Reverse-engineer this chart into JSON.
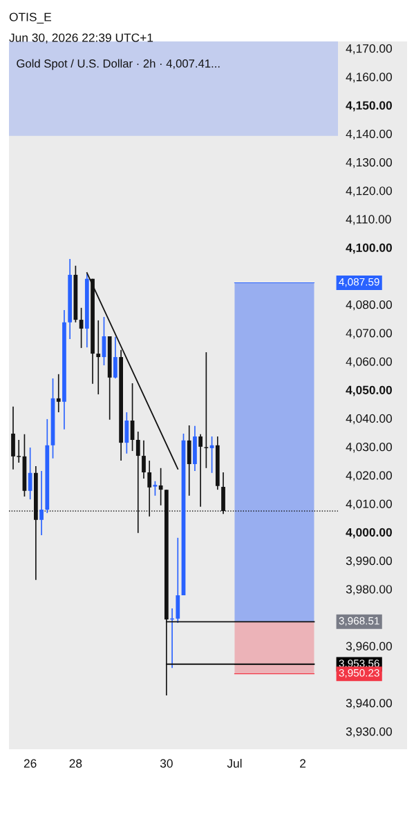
{
  "chart_data": {
    "type": "candlestick",
    "title": "Gold Spot / U.S. Dollar · 2h · 4,007.41...",
    "annotations": [
      "OTIS_E",
      "Jun 30, 2026 22:39 UTC+1"
    ],
    "categories": [
      null,
      null,
      null,
      "26",
      null,
      null,
      null,
      null,
      null,
      null,
      null,
      "28",
      null,
      null,
      null,
      null,
      null,
      null,
      null,
      null,
      null,
      null,
      null,
      null,
      null,
      null,
      null,
      "30",
      null,
      null,
      null,
      null,
      null,
      null,
      null,
      null,
      null,
      null,
      null,
      "Jul",
      null,
      null,
      null,
      null,
      null,
      null,
      null,
      null,
      null,
      null,
      null,
      "2",
      null,
      null,
      null,
      null,
      null,
      null
    ],
    "ohlc": [
      [
        4034.6,
        4044.1,
        4022.0,
        4026.6
      ],
      [
        4026.6,
        4032.4,
        4024.4,
        4026.4
      ],
      [
        4026.6,
        4034.4,
        4012.5,
        4014.5
      ],
      [
        4014.5,
        4029.7,
        4011.5,
        4020.8
      ],
      [
        4020.8,
        4023.2,
        3983.2,
        4004.3
      ],
      [
        4004.3,
        4021.5,
        3998.9,
        4007.9
      ],
      [
        4007.9,
        4039.7,
        4006.7,
        4030.5
      ],
      [
        4030.5,
        4054.0,
        4025.9,
        4047.0
      ],
      [
        4047.0,
        4055.5,
        4042.1,
        4045.8
      ],
      [
        4045.8,
        4078.0,
        4036.1,
        4073.7
      ],
      [
        4073.7,
        4096.0,
        4067.8,
        4090.4
      ],
      [
        4090.4,
        4093.6,
        4073.7,
        4074.6
      ],
      [
        4074.6,
        4078.8,
        4064.7,
        4071.5
      ],
      [
        4071.5,
        4090.7,
        4064.9,
        4089.0
      ],
      [
        4089.0,
        4089.0,
        4052.1,
        4062.7
      ],
      [
        4062.7,
        4074.4,
        4048.4,
        4061.5
      ],
      [
        4061.5,
        4075.6,
        4058.6,
        4068.8
      ],
      [
        4068.8,
        4068.8,
        4039.5,
        4054.3
      ],
      [
        4054.3,
        4068.6,
        4054.0,
        4061.5
      ],
      [
        4061.5,
        4064.0,
        4025.1,
        4031.4
      ],
      [
        4031.4,
        4042.1,
        4027.6,
        4039.2
      ],
      [
        4039.2,
        4052.3,
        4028.5,
        4032.4
      ],
      [
        4032.4,
        4035.3,
        3999.7,
        4026.8
      ],
      [
        4026.8,
        4032.2,
        4018.8,
        4021.0
      ],
      [
        4021.0,
        4025.1,
        4005.5,
        4015.7
      ],
      [
        4016.0,
        4017.9,
        4012.8,
        4016.6
      ],
      [
        4016.4,
        4022.5,
        4009.4,
        4014.9
      ],
      [
        4014.9,
        4014.9,
        3942.6,
        3969.3
      ],
      [
        3969.3,
        3973.2,
        3952.3,
        3969.6
      ],
      [
        3969.6,
        3998.0,
        3968.1,
        3977.8
      ],
      [
        3977.8,
        4034.6,
        3977.8,
        4032.2
      ],
      [
        4032.2,
        4037.5,
        4012.8,
        4023.9
      ],
      [
        4023.9,
        4037.3,
        4021.5,
        4033.6
      ],
      [
        4033.6,
        4034.4,
        4008.9,
        4030.0
      ],
      [
        4029.6,
        4063.2,
        4022.5,
        4029.5
      ],
      [
        4029.5,
        4033.6,
        4020.8,
        4030.5
      ],
      [
        4030.5,
        4033.6,
        4014.9,
        4016.2
      ],
      [
        4015.9,
        4021.0,
        4006.4,
        4007.41
      ],
      null,
      null,
      null,
      null,
      null,
      null,
      null,
      null,
      null,
      null,
      null,
      null,
      null,
      null,
      null,
      null,
      null,
      null,
      null,
      null
    ],
    "colors": [
      "#131313",
      "#131313",
      "#131313",
      "#2962ff",
      "#131313",
      "#2962ff",
      "#2962ff",
      "#2962ff",
      "#131313",
      "#2962ff",
      "#2962ff",
      "#131313",
      "#131313",
      "#2962ff",
      "#131313",
      "#131313",
      "#2962ff",
      "#131313",
      "#2962ff",
      "#131313",
      "#2962ff",
      "#131313",
      "#131313",
      "#131313",
      "#131313",
      "#2962ff",
      "#131313",
      "#131313",
      "#2962ff",
      "#2962ff",
      "#2962ff",
      "#131313",
      "#2962ff",
      "#131313",
      "#131313",
      "#2962ff",
      "#131313",
      "#131313",
      null,
      null,
      null,
      null,
      null,
      null,
      null,
      null,
      null,
      null,
      null,
      null,
      null,
      null,
      null,
      null,
      null,
      null,
      null,
      null
    ],
    "series": [
      {
        "type": "line",
        "color": "#131313",
        "values": [
          null,
          null,
          null,
          null,
          null,
          null,
          null,
          null,
          null,
          null,
          null,
          null,
          null,
          4091.1,
          null,
          null,
          null,
          null,
          null,
          null,
          null,
          null,
          null,
          null,
          null,
          null,
          null,
          null,
          null,
          4022.2,
          null,
          null,
          null,
          null,
          null,
          null,
          null,
          null,
          null,
          null,
          null,
          null,
          null,
          null,
          null,
          null,
          null,
          null,
          null,
          null,
          null,
          null,
          null,
          null,
          null,
          null,
          null,
          null
        ]
      },
      {
        "type": "line",
        "color": "#131313",
        "values": [
          null,
          null,
          null,
          null,
          null,
          null,
          null,
          null,
          null,
          null,
          null,
          null,
          null,
          null,
          null,
          null,
          null,
          null,
          null,
          null,
          null,
          null,
          null,
          null,
          null,
          null,
          null,
          3968.5,
          null,
          null,
          null,
          null,
          null,
          null,
          null,
          null,
          null,
          null,
          null,
          null,
          null,
          null,
          null,
          null,
          null,
          null,
          null,
          null,
          null,
          null,
          null,
          null,
          null,
          3968.5,
          null,
          null,
          null,
          null
        ]
      },
      {
        "type": "line",
        "color": "#131313",
        "values": [
          null,
          null,
          null,
          null,
          null,
          null,
          null,
          null,
          null,
          null,
          null,
          null,
          null,
          null,
          null,
          null,
          null,
          null,
          null,
          null,
          null,
          null,
          null,
          null,
          null,
          null,
          null,
          3953.6,
          null,
          null,
          null,
          null,
          null,
          null,
          null,
          null,
          null,
          null,
          null,
          null,
          null,
          null,
          null,
          null,
          null,
          null,
          null,
          null,
          null,
          null,
          null,
          null,
          null,
          3953.6,
          null,
          null,
          null,
          null
        ]
      }
    ],
    "bands": [
      {
        "axis": "y",
        "from": 3968.51,
        "to": 4087.59,
        "color": "#98aef0"
      },
      {
        "axis": "y",
        "from": 3950.23,
        "to": 3968.51,
        "color": "#ecb3b8"
      }
    ],
    "ref_lines": [
      {
        "axis": "y",
        "value": 4007.41,
        "color": "#131313",
        "line_style": "dotted"
      },
      {
        "axis": "y",
        "value": 4087.59,
        "label": "4,087.59",
        "color": "#2962ff",
        "line_style": "solid"
      },
      {
        "axis": "y",
        "value": 3968.51,
        "label": "3,968.51",
        "color": "#787b86",
        "line_style": "solid"
      },
      {
        "axis": "y",
        "value": 3953.56,
        "label": "3,953.56",
        "color": "#000000",
        "line_style": "solid"
      },
      {
        "axis": "y",
        "value": 3950.23,
        "label": "3,950.23",
        "color": "#f23645",
        "line_style": "solid"
      }
    ],
    "ylim": [
      3923.7,
      4172.4
    ],
    "yticks": [
      {
        "value": 3930,
        "label": "3,930.00"
      },
      {
        "value": 3940,
        "label": "3,940.00"
      },
      {
        "value": 3960,
        "label": "3,960.00"
      },
      {
        "value": 3980,
        "label": "3,980.00"
      },
      {
        "value": 3990,
        "label": "3,990.00"
      },
      {
        "value": 4000,
        "label": "4,000.00"
      },
      {
        "value": 4010,
        "label": "4,010.00"
      },
      {
        "value": 4020,
        "label": "4,020.00"
      },
      {
        "value": 4030,
        "label": "4,030.00"
      },
      {
        "value": 4040,
        "label": "4,040.00"
      },
      {
        "value": 4050,
        "label": "4,050.00"
      },
      {
        "value": 4060,
        "label": "4,060.00"
      },
      {
        "value": 4070,
        "label": "4,070.00"
      },
      {
        "value": 4080,
        "label": "4,080.00"
      },
      {
        "value": 4100,
        "label": "4,100.00"
      },
      {
        "value": 4110,
        "label": "4,110.00"
      },
      {
        "value": 4120,
        "label": "4,120.00"
      },
      {
        "value": 4130,
        "label": "4,130.00"
      },
      {
        "value": 4140,
        "label": "4,140.00"
      },
      {
        "value": 4150,
        "label": "4,150.00"
      },
      {
        "value": 4160,
        "label": "4,160.00"
      },
      {
        "value": 4170,
        "label": "4,170.00"
      }
    ],
    "grid": false,
    "legend": false
  }
}
